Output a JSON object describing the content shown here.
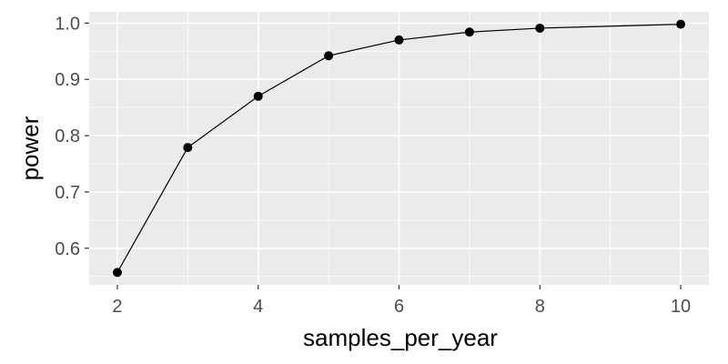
{
  "chart_data": {
    "type": "line",
    "xlabel": "samples_per_year",
    "ylabel": "power",
    "x": [
      2,
      3,
      4,
      5,
      6,
      7,
      8,
      10
    ],
    "series": [
      {
        "values": [
          0.557,
          0.779,
          0.87,
          0.942,
          0.97,
          0.984,
          0.991,
          0.998
        ]
      }
    ],
    "xlim": [
      1.6,
      10.4
    ],
    "ylim": [
      0.535,
      1.02
    ],
    "x_ticks": [
      2,
      4,
      6,
      8,
      10
    ],
    "x_tick_labels": [
      "2",
      "4",
      "6",
      "8",
      "10"
    ],
    "y_ticks": [
      0.6,
      0.7,
      0.8,
      0.9,
      1.0
    ],
    "y_tick_labels": [
      "0.6",
      "0.7",
      "0.8",
      "0.9",
      "1.0"
    ],
    "grid": true,
    "colors": {
      "panel": "#ebebeb",
      "grid": "#ffffff",
      "line": "#000000",
      "point": "#000000"
    }
  }
}
